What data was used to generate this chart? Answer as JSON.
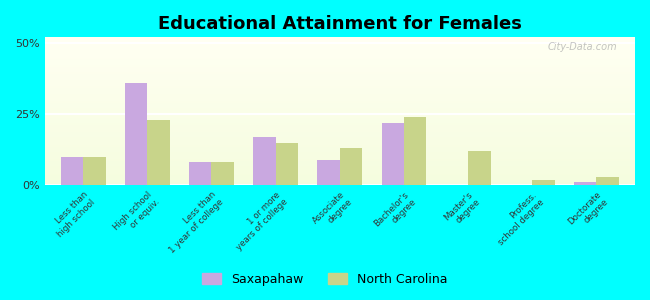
{
  "title": "Educational Attainment for Females",
  "categories": [
    "Less than\nhigh school",
    "High school\nor equiv.",
    "Less than\n1 year of college",
    "1 or more\nyears of college",
    "Associate\ndegree",
    "Bachelor's\ndegree",
    "Master's\ndegree",
    "Profess.\nschool degree",
    "Doctorate\ndegree"
  ],
  "saxapahaw": [
    10,
    36,
    8,
    17,
    9,
    22,
    0,
    0,
    1
  ],
  "north_carolina": [
    10,
    23,
    8,
    15,
    13,
    24,
    12,
    2,
    3
  ],
  "saxapahaw_color": "#c9a8e0",
  "north_carolina_color": "#c8d48a",
  "background_color": "#00ffff",
  "yticks": [
    0,
    25,
    50
  ],
  "ylim": [
    0,
    52
  ],
  "bar_width": 0.35,
  "watermark": "City-Data.com"
}
